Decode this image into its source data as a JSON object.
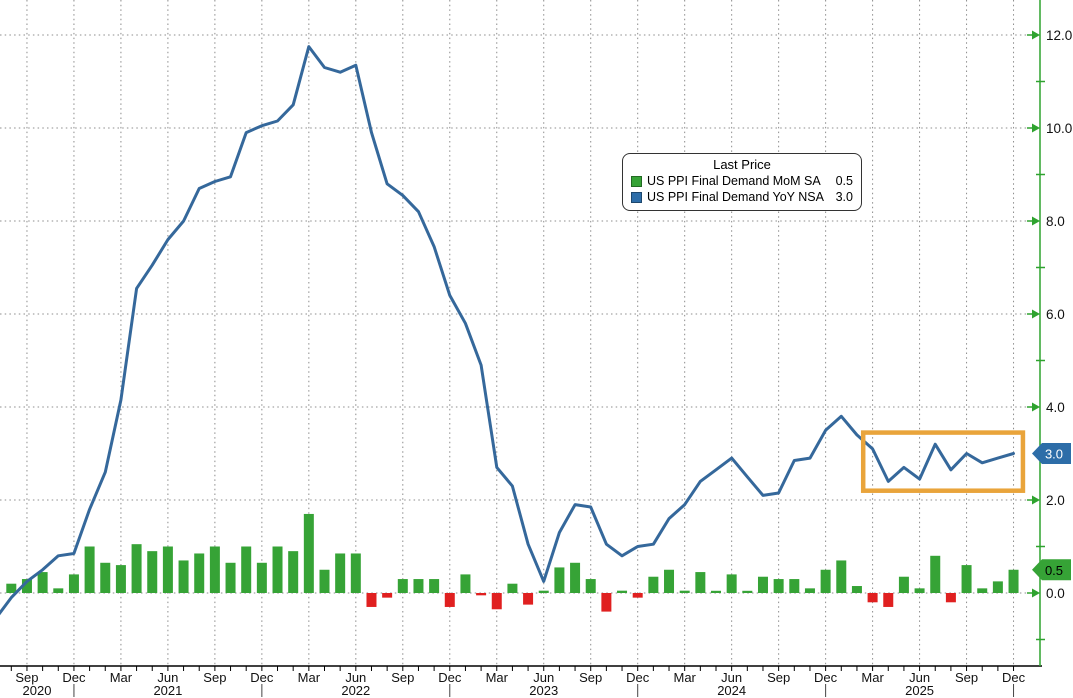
{
  "chart_data": {
    "type": "combo",
    "subtypes": [
      "bar",
      "line"
    ],
    "background": "#FFFFFF",
    "grid": {
      "horizontal": true,
      "vertical": true,
      "style": "dotted",
      "color": "#8C8C8C"
    },
    "legend": {
      "title": "Last Price",
      "series": [
        {
          "label": "US PPI Final Demand MoM SA",
          "last_price": "0.5",
          "swatch_color": "#36A336"
        },
        {
          "label": "US PPI Final Demand YoY NSA",
          "last_price": "3.0",
          "swatch_color": "#2D6DA8"
        }
      ]
    },
    "x_axis": {
      "frequency": "monthly",
      "line_color": "#000000",
      "tick_labels": [
        "Sep",
        "Dec",
        "Mar",
        "Jun",
        "Sep",
        "Dec",
        "Mar",
        "Jun",
        "Sep",
        "Dec",
        "Mar",
        "Jun",
        "Sep",
        "Dec",
        "Mar",
        "Jun",
        "Sep",
        "Dec",
        "Mar",
        "Jun",
        "Sep",
        "Dec"
      ],
      "year_labels": [
        "2020",
        "2021",
        "2022",
        "2023",
        "2024",
        "2025"
      ],
      "year_separator_month_indices": [
        4,
        16,
        28,
        40,
        52,
        64
      ]
    },
    "y_axis": {
      "side": "right",
      "axis_color": "#2FA32F",
      "labeled_ticks": [
        0,
        2,
        4,
        6,
        8,
        10,
        12
      ],
      "tick_label_texts": [
        "0.0",
        "2.0",
        "4.0",
        "6.0",
        "8.0",
        "10.0",
        "12.0"
      ],
      "minor_ticks": [
        -1,
        1,
        3,
        5,
        7,
        9,
        11
      ],
      "badges": [
        {
          "text": "3.0",
          "value": 3.0,
          "fill": "#2D6DA8",
          "text_color": "#FFFFFF"
        },
        {
          "text": "0.5",
          "value": 0.5,
          "fill": "#36A336",
          "text_color": "#000000"
        }
      ]
    },
    "series": [
      {
        "name": "US PPI Final Demand MoM SA",
        "type": "bar",
        "start": "2020-08",
        "color_positive": "#36A336",
        "color_negative": "#E02020",
        "values": [
          0.2,
          0.3,
          0.45,
          0.1,
          0.4,
          1.0,
          0.65,
          0.6,
          1.05,
          0.9,
          1.0,
          0.7,
          0.85,
          1.0,
          0.65,
          1.0,
          0.65,
          1.0,
          0.9,
          1.7,
          0.5,
          0.85,
          0.85,
          -0.3,
          -0.1,
          0.3,
          0.3,
          0.3,
          -0.3,
          0.4,
          -0.05,
          -0.35,
          0.2,
          -0.25,
          0.05,
          0.55,
          0.65,
          0.3,
          -0.4,
          0.05,
          -0.1,
          0.35,
          0.5,
          0.05,
          0.45,
          0.0,
          0.4,
          0.0,
          0.35,
          0.3,
          0.3,
          0.1,
          0.5,
          0.7,
          0.15,
          -0.2,
          -0.3,
          0.35,
          0.1,
          0.8,
          -0.2,
          0.6,
          0.1,
          0.25,
          0.5
        ]
      },
      {
        "name": "US PPI Final Demand YoY NSA",
        "type": "line",
        "start": "2020-07",
        "color": "#35689B",
        "values": [
          -0.55,
          -0.1,
          0.25,
          0.5,
          0.8,
          0.85,
          1.8,
          2.6,
          4.15,
          6.55,
          7.05,
          7.6,
          8.0,
          8.7,
          8.85,
          8.95,
          9.9,
          10.05,
          10.15,
          10.5,
          11.75,
          11.3,
          11.2,
          11.35,
          9.9,
          8.8,
          8.55,
          8.2,
          7.45,
          6.4,
          5.8,
          4.9,
          2.7,
          2.3,
          1.05,
          0.25,
          1.3,
          1.9,
          1.85,
          1.05,
          0.8,
          1.0,
          1.05,
          1.6,
          1.9,
          2.4,
          2.65,
          2.9,
          2.5,
          2.1,
          2.15,
          2.85,
          2.9,
          3.5,
          3.8,
          3.4,
          3.1,
          2.4,
          2.7,
          2.45,
          3.2,
          2.65,
          3.0,
          2.8,
          2.9,
          3.0
        ]
      }
    ],
    "annotation_box": {
      "color": "#E9A43B",
      "from_month_index": 54.4,
      "to_month_index": 64.6,
      "value_top": 3.45,
      "value_bottom": 2.2
    }
  }
}
